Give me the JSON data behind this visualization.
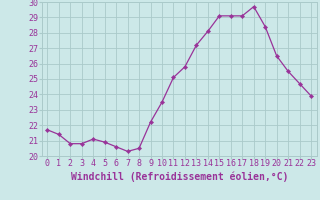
{
  "x": [
    0,
    1,
    2,
    3,
    4,
    5,
    6,
    7,
    8,
    9,
    10,
    11,
    12,
    13,
    14,
    15,
    16,
    17,
    18,
    19,
    20,
    21,
    22,
    23
  ],
  "y": [
    21.7,
    21.4,
    20.8,
    20.8,
    21.1,
    20.9,
    20.6,
    20.3,
    20.5,
    22.2,
    23.5,
    25.1,
    25.8,
    27.2,
    28.1,
    29.1,
    29.1,
    29.1,
    29.7,
    28.4,
    26.5,
    25.5,
    24.7,
    23.9
  ],
  "ylim": [
    20,
    30
  ],
  "yticks": [
    20,
    21,
    22,
    23,
    24,
    25,
    26,
    27,
    28,
    29,
    30
  ],
  "xticks": [
    0,
    1,
    2,
    3,
    4,
    5,
    6,
    7,
    8,
    9,
    10,
    11,
    12,
    13,
    14,
    15,
    16,
    17,
    18,
    19,
    20,
    21,
    22,
    23
  ],
  "xlabel": "Windchill (Refroidissement éolien,°C)",
  "line_color": "#993399",
  "marker": "D",
  "marker_size": 2.2,
  "bg_color": "#cce8e8",
  "grid_color": "#aacaca",
  "xlabel_fontsize": 7,
  "tick_fontsize": 6,
  "xlim": [
    -0.5,
    23.5
  ]
}
